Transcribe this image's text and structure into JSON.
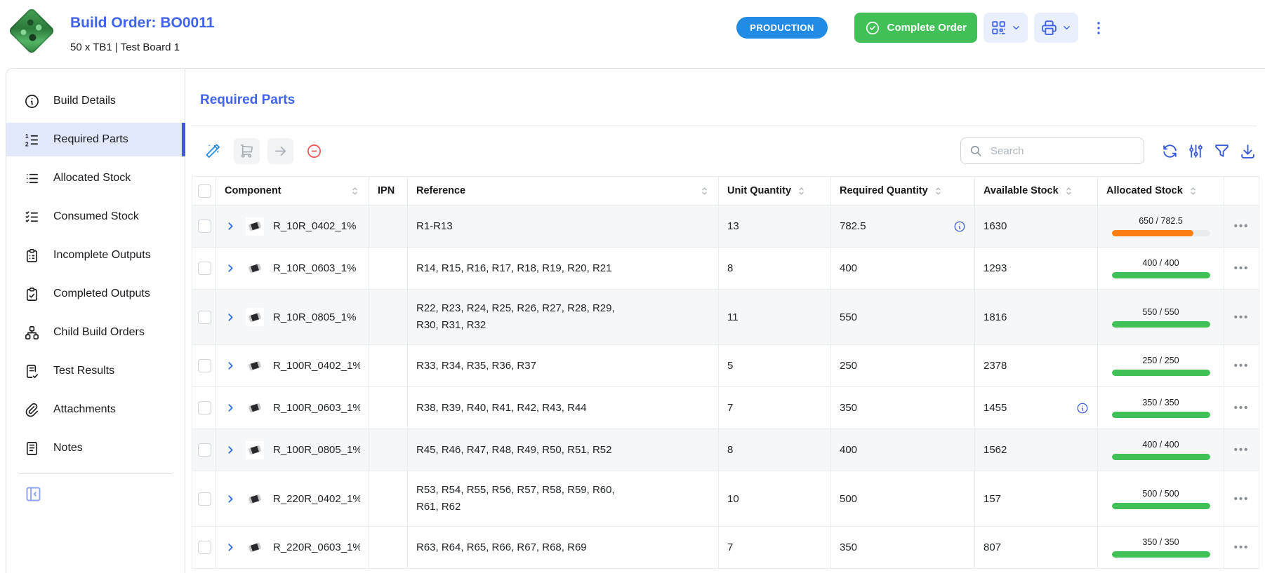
{
  "header": {
    "title": "Build Order: BO0011",
    "subtitle": "50 x TB1 | Test Board 1",
    "status": "PRODUCTION",
    "complete_order": "Complete Order"
  },
  "sidebar": {
    "items": [
      {
        "label": "Build Details",
        "icon": "info-circle-icon",
        "active": false
      },
      {
        "label": "Required Parts",
        "icon": "list-numbers-icon",
        "active": true
      },
      {
        "label": "Allocated Stock",
        "icon": "list-icon",
        "active": false
      },
      {
        "label": "Consumed Stock",
        "icon": "list-check-icon",
        "active": false
      },
      {
        "label": "Incomplete Outputs",
        "icon": "clipboard-list-icon",
        "active": false
      },
      {
        "label": "Completed Outputs",
        "icon": "clipboard-check-icon",
        "active": false
      },
      {
        "label": "Child Build Orders",
        "icon": "sitemap-icon",
        "active": false
      },
      {
        "label": "Test Results",
        "icon": "report-check-icon",
        "active": false
      },
      {
        "label": "Attachments",
        "icon": "paperclip-icon",
        "active": false
      },
      {
        "label": "Notes",
        "icon": "notes-icon",
        "active": false
      }
    ]
  },
  "main": {
    "title": "Required Parts",
    "search_placeholder": "Search",
    "table": {
      "columns": [
        {
          "label": "Component",
          "sortable": true
        },
        {
          "label": "IPN",
          "sortable": false
        },
        {
          "label": "Reference",
          "sortable": true
        },
        {
          "label": "Unit Quantity",
          "sortable": true
        },
        {
          "label": "Required Quantity",
          "sortable": true
        },
        {
          "label": "Available Stock",
          "sortable": true
        },
        {
          "label": "Allocated Stock",
          "sortable": true
        }
      ],
      "rows": [
        {
          "component": "R_10R_0402_1%",
          "ipn": "",
          "reference": "R1-R13",
          "unit_quantity": "13",
          "required_quantity": "782.5",
          "required_info": true,
          "available_stock": "1630",
          "available_info": false,
          "allocated": {
            "label": "650 / 782.5",
            "percent": 83,
            "state": "partial"
          },
          "striped": true
        },
        {
          "component": "R_10R_0603_1%",
          "ipn": "",
          "reference": "R14, R15, R16, R17, R18, R19, R20, R21",
          "unit_quantity": "8",
          "required_quantity": "400",
          "required_info": false,
          "available_stock": "1293",
          "available_info": false,
          "allocated": {
            "label": "400 / 400",
            "percent": 100,
            "state": "full"
          },
          "striped": false
        },
        {
          "component": "R_10R_0805_1%",
          "ipn": "",
          "reference": "R22, R23, R24, R25, R26, R27, R28, R29, R30, R31, R32",
          "unit_quantity": "11",
          "required_quantity": "550",
          "required_info": false,
          "available_stock": "1816",
          "available_info": false,
          "allocated": {
            "label": "550 / 550",
            "percent": 100,
            "state": "full"
          },
          "striped": true
        },
        {
          "component": "R_100R_0402_1%",
          "ipn": "",
          "reference": "R33, R34, R35, R36, R37",
          "unit_quantity": "5",
          "required_quantity": "250",
          "required_info": false,
          "available_stock": "2378",
          "available_info": false,
          "allocated": {
            "label": "250 / 250",
            "percent": 100,
            "state": "full"
          },
          "striped": false
        },
        {
          "component": "R_100R_0603_1%",
          "ipn": "",
          "reference": "R38, R39, R40, R41, R42, R43, R44",
          "unit_quantity": "7",
          "required_quantity": "350",
          "required_info": false,
          "available_stock": "1455",
          "available_info": true,
          "allocated": {
            "label": "350 / 350",
            "percent": 100,
            "state": "full"
          },
          "striped": false
        },
        {
          "component": "R_100R_0805_1%",
          "ipn": "",
          "reference": "R45, R46, R47, R48, R49, R50, R51, R52",
          "unit_quantity": "8",
          "required_quantity": "400",
          "required_info": false,
          "available_stock": "1562",
          "available_info": false,
          "allocated": {
            "label": "400 / 400",
            "percent": 100,
            "state": "full"
          },
          "striped": true
        },
        {
          "component": "R_220R_0402_1%",
          "ipn": "",
          "reference": "R53, R54, R55, R56, R57, R58, R59, R60, R61, R62",
          "unit_quantity": "10",
          "required_quantity": "500",
          "required_info": false,
          "available_stock": "157",
          "available_info": false,
          "allocated": {
            "label": "500 / 500",
            "percent": 100,
            "state": "full"
          },
          "striped": false
        },
        {
          "component": "R_220R_0603_1%",
          "ipn": "",
          "reference": "R63, R64, R65, R66, R67, R68, R69",
          "unit_quantity": "7",
          "required_quantity": "350",
          "required_info": false,
          "available_stock": "807",
          "available_info": false,
          "allocated": {
            "label": "350 / 350",
            "percent": 100,
            "state": "full"
          },
          "striped": false
        }
      ]
    }
  },
  "colors": {
    "accent_blue": "#4263eb",
    "badge_blue": "#228be6",
    "success_green": "#40c057",
    "warning_orange": "#fd7e14"
  }
}
